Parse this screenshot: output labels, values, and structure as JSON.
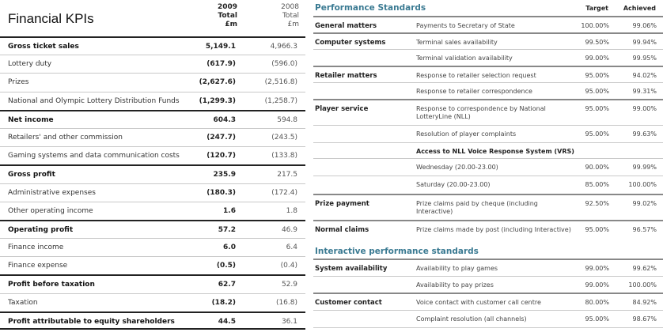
{
  "financial": {
    "title": "Financial KPIs",
    "col2009": {
      "year": "2009",
      "total": "Total",
      "unit": "£m"
    },
    "col2008": {
      "year": "2008",
      "total": "Total",
      "unit": "£m"
    },
    "rows": [
      {
        "label": "Gross ticket sales",
        "v2009": "5,149.1",
        "v2008": "4,966.3"
      },
      {
        "label": "Lottery duty",
        "v2009": "(617.9)",
        "v2008": "(596.0)"
      },
      {
        "label": "Prizes",
        "v2009": "(2,627.6)",
        "v2008": "(2,516.8)"
      },
      {
        "label": "National and Olympic Lottery Distribution Funds",
        "v2009": "(1,299.3)",
        "v2008": "(1,258.7)"
      },
      {
        "label": "Net income",
        "v2009": "604.3",
        "v2008": "594.8"
      },
      {
        "label": "Retailers' and other commission",
        "v2009": "(247.7)",
        "v2008": "(243.5)"
      },
      {
        "label": "Gaming systems and data communication costs",
        "v2009": "(120.7)",
        "v2008": "(133.8)"
      },
      {
        "label": "Gross profit",
        "v2009": "235.9",
        "v2008": "217.5"
      },
      {
        "label": "Administrative expenses",
        "v2009": "(180.3)",
        "v2008": "(172.4)"
      },
      {
        "label": "Other operating income",
        "v2009": "1.6",
        "v2008": "1.8"
      },
      {
        "label": "Operating profit",
        "v2009": "57.2",
        "v2008": "46.9"
      },
      {
        "label": "Finance income",
        "v2009": "6.0",
        "v2008": "6.4"
      },
      {
        "label": "Finance expense",
        "v2009": "(0.5)",
        "v2008": "(0.4)"
      },
      {
        "label": "Profit before taxation",
        "v2009": "62.7",
        "v2008": "52.9"
      },
      {
        "label": "Taxation",
        "v2009": "(18.2)",
        "v2008": "(16.8)"
      },
      {
        "label": "Profit attributable to equity shareholders",
        "v2009": "44.5",
        "v2008": "36.1"
      }
    ]
  },
  "performance": {
    "title": "Performance Standards",
    "target_header": "Target",
    "achieved_header": "Achieved",
    "rows": [
      {
        "category": "General matters",
        "desc": "Payments to Secretary of State",
        "target": "100.00%",
        "achieved": "99.06%"
      },
      {
        "category": "Computer systems",
        "desc": "Terminal sales availability",
        "target": "99.50%",
        "achieved": "99.94%"
      },
      {
        "category": "",
        "desc": "Terminal validation availability",
        "target": "99.00%",
        "achieved": "99.95%"
      },
      {
        "category": "Retailer matters",
        "desc": "Response to retailer selection request",
        "target": "95.00%",
        "achieved": "94.02%"
      },
      {
        "category": "",
        "desc": "Response to retailer correspondence",
        "target": "95.00%",
        "achieved": "99.31%"
      },
      {
        "category": "Player service",
        "desc": "Response to correspondence by National LotteryLine (NLL)",
        "target": "95.00%",
        "achieved": "99.00%"
      },
      {
        "category": "",
        "desc": "Resolution of player complaints",
        "target": "95.00%",
        "achieved": "99.63%"
      },
      {
        "category": "",
        "desc": "Access to NLL Voice Response System (VRS)",
        "target": "",
        "achieved": ""
      },
      {
        "category": "",
        "desc": "Wednesday (20.00-23.00)",
        "target": "90.00%",
        "achieved": "99.99%"
      },
      {
        "category": "",
        "desc": "Saturday (20.00-23.00)",
        "target": "85.00%",
        "achieved": "100.00%"
      },
      {
        "category": "Prize payment",
        "desc": "Prize claims paid by cheque (including Interactive)",
        "target": "92.50%",
        "achieved": "99.02%"
      },
      {
        "category": "Normal claims",
        "desc": "Prize claims made by post (including Interactive)",
        "target": "95.00%",
        "achieved": "96.57%"
      }
    ]
  },
  "interactive": {
    "title": "Interactive performance standards",
    "rows": [
      {
        "category": "System availability",
        "desc": "Availability to play games",
        "target": "99.00%",
        "achieved": "99.62%"
      },
      {
        "category": "",
        "desc": "Availability to pay prizes",
        "target": "99.00%",
        "achieved": "100.00%"
      },
      {
        "category": "Customer contact",
        "desc": "Voice contact with customer call centre",
        "target": "80.00%",
        "achieved": "84.92%"
      },
      {
        "category": "",
        "desc": "Complaint resolution (all channels)",
        "target": "95.00%",
        "achieved": "98.67%"
      }
    ]
  }
}
